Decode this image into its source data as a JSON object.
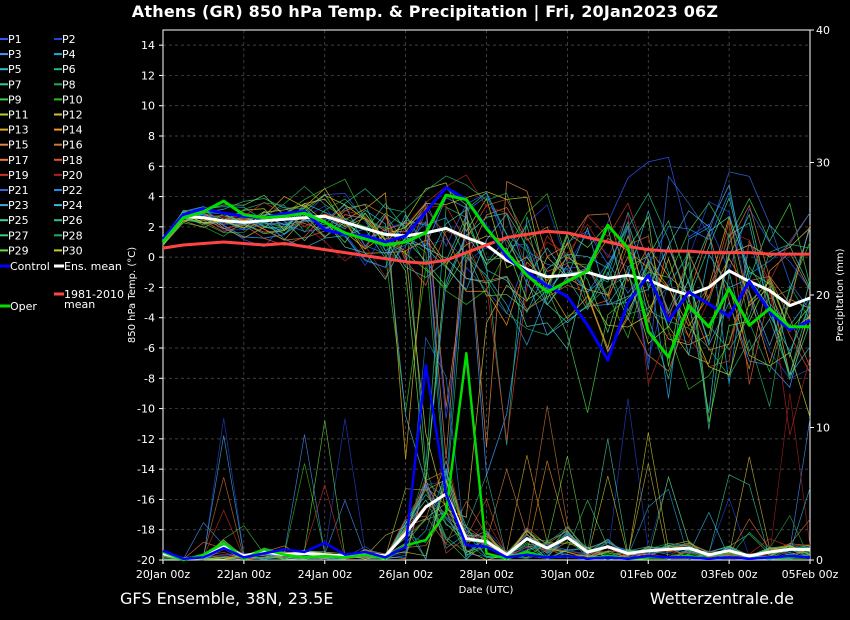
{
  "title": "Athens  (GR)  850 hPa Temp. & Precipitation | Fri, 20Jan2023 06Z",
  "footer": {
    "left": "GFS Ensemble, 38N, 23.5E",
    "right": "Wetterzentrale.de"
  },
  "chart_data": {
    "type": "line",
    "xlabel": "Date (UTC)",
    "ylabel": "850 hPa Temp. (°C)",
    "y2label": "Precipitation (mm)",
    "ylim": [
      -20,
      15
    ],
    "y2lim": [
      0,
      40
    ],
    "xlim_days": [
      0,
      16
    ],
    "x_ticks": [
      {
        "day": 0,
        "label": "20Jan 00z"
      },
      {
        "day": 2,
        "label": "22Jan 00z"
      },
      {
        "day": 4,
        "label": "24Jan 00z"
      },
      {
        "day": 6,
        "label": "26Jan 00z"
      },
      {
        "day": 8,
        "label": "28Jan 00z"
      },
      {
        "day": 10,
        "label": "30Jan 00z"
      },
      {
        "day": 12,
        "label": "01Feb 00z"
      },
      {
        "day": 14,
        "label": "03Feb 00z"
      },
      {
        "day": 16,
        "label": "05Feb 00z"
      }
    ],
    "y_ticks": [
      14,
      12,
      10,
      8,
      6,
      4,
      2,
      0,
      -2,
      -4,
      -6,
      -8,
      -10,
      -12,
      -14,
      -16,
      -18,
      -20
    ],
    "y2_ticks": [
      0,
      10,
      20,
      30,
      40
    ],
    "grid": true,
    "legend_position": "left",
    "legend": [
      {
        "label": "P1",
        "color": "#3355ff"
      },
      {
        "label": "P2",
        "color": "#2244dd"
      },
      {
        "label": "P3",
        "color": "#4499ff"
      },
      {
        "label": "P4",
        "color": "#22aadd"
      },
      {
        "label": "P5",
        "color": "#33bbcc"
      },
      {
        "label": "P6",
        "color": "#22bb88"
      },
      {
        "label": "P7",
        "color": "#33cc99"
      },
      {
        "label": "P8",
        "color": "#22aa55"
      },
      {
        "label": "P9",
        "color": "#44cc44"
      },
      {
        "label": "P10",
        "color": "#33bb22"
      },
      {
        "label": "P11",
        "color": "#bbcc33"
      },
      {
        "label": "P12",
        "color": "#ccbb44"
      },
      {
        "label": "P13",
        "color": "#ddaa22"
      },
      {
        "label": "P14",
        "color": "#ee9922"
      },
      {
        "label": "P15",
        "color": "#dd8844"
      },
      {
        "label": "P16",
        "color": "#cc7733"
      },
      {
        "label": "P17",
        "color": "#ee7744"
      },
      {
        "label": "P18",
        "color": "#dd5533"
      },
      {
        "label": "P19",
        "color": "#cc3322"
      },
      {
        "label": "P20",
        "color": "#aa2222"
      },
      {
        "label": "P21",
        "color": "#3366dd"
      },
      {
        "label": "P22",
        "color": "#2288ee"
      },
      {
        "label": "P23",
        "color": "#44aadd"
      },
      {
        "label": "P24",
        "color": "#33bbdd"
      },
      {
        "label": "P25",
        "color": "#44ccaa"
      },
      {
        "label": "P26",
        "color": "#33bb99"
      },
      {
        "label": "P27",
        "color": "#44cc77"
      },
      {
        "label": "P28",
        "color": "#22aa66"
      },
      {
        "label": "P29",
        "color": "#66dd44"
      },
      {
        "label": "P30",
        "color": "#cccc22"
      },
      {
        "label": "Control",
        "color": "#0000ff"
      },
      {
        "label": "Ens. mean",
        "color": "#ffffff"
      },
      {
        "label": "1981-2010 mean",
        "color": "#ff4444"
      },
      {
        "label": "Oper",
        "color": "#00dd00"
      }
    ],
    "series": [
      {
        "name": "Ens. mean",
        "color": "#ffffff",
        "x": [
          0,
          0.5,
          1,
          1.5,
          2,
          2.5,
          3,
          3.5,
          4,
          4.5,
          5,
          5.5,
          6,
          6.5,
          7,
          7.5,
          8,
          8.5,
          9,
          9.5,
          10,
          10.5,
          11,
          11.5,
          12,
          12.5,
          13,
          13.5,
          14,
          14.5,
          15,
          15.5,
          16
        ],
        "values": [
          1.0,
          2.7,
          2.6,
          2.4,
          2.3,
          2.4,
          2.5,
          2.6,
          2.7,
          2.3,
          1.9,
          1.5,
          1.4,
          1.6,
          1.9,
          1.3,
          0.8,
          -0.2,
          -0.8,
          -1.3,
          -1.2,
          -1.0,
          -1.4,
          -1.2,
          -1.5,
          -2.1,
          -2.5,
          -2.0,
          -0.9,
          -1.6,
          -2.2,
          -3.2,
          -2.7
        ]
      },
      {
        "name": "1981-2010 mean",
        "color": "#ff4444",
        "x": [
          0,
          0.5,
          1,
          1.5,
          2,
          2.5,
          3,
          3.5,
          4,
          4.5,
          5,
          5.5,
          6,
          6.5,
          7,
          7.5,
          8,
          8.5,
          9,
          9.5,
          10,
          10.5,
          11,
          11.5,
          12,
          12.5,
          13,
          13.5,
          14,
          14.5,
          15,
          15.5,
          16
        ],
        "values": [
          0.6,
          0.8,
          0.9,
          1.0,
          0.9,
          0.8,
          0.9,
          0.7,
          0.5,
          0.3,
          0.1,
          -0.1,
          -0.3,
          -0.4,
          -0.2,
          0.3,
          0.8,
          1.3,
          1.5,
          1.7,
          1.6,
          1.3,
          1.0,
          0.7,
          0.5,
          0.4,
          0.4,
          0.3,
          0.3,
          0.3,
          0.2,
          0.2,
          0.2
        ]
      },
      {
        "name": "Control",
        "color": "#0000ff",
        "x": [
          0,
          0.5,
          1,
          1.5,
          2,
          2.5,
          3,
          3.5,
          4,
          4.5,
          5,
          5.5,
          6,
          6.5,
          7,
          7.5,
          8,
          8.5,
          9,
          9.5,
          10,
          10.5,
          11,
          11.5,
          12,
          12.5,
          13,
          13.5,
          14,
          14.5,
          15,
          15.5,
          16
        ],
        "values": [
          1.2,
          2.8,
          3.2,
          2.9,
          2.7,
          2.6,
          2.9,
          3.0,
          1.8,
          1.5,
          1.4,
          1.0,
          1.4,
          3.0,
          4.6,
          3.8,
          2.0,
          0.0,
          -1.0,
          -1.9,
          -2.6,
          -4.5,
          -6.8,
          -3.0,
          -1.2,
          -4.2,
          -2.3,
          -3.1,
          -3.9,
          -1.6,
          -3.6,
          -4.8,
          -4.2
        ]
      },
      {
        "name": "Oper",
        "color": "#00dd00",
        "x": [
          0,
          0.5,
          1,
          1.5,
          2,
          2.5,
          3,
          3.5,
          4,
          4.5,
          5,
          5.5,
          6,
          6.5,
          7,
          7.5,
          8,
          8.5,
          9,
          9.5,
          10,
          10.5,
          11,
          11.5,
          12,
          12.5,
          13,
          13.5,
          14,
          14.5,
          15,
          15.5,
          16
        ],
        "values": [
          1.0,
          2.6,
          3.0,
          3.7,
          2.8,
          2.6,
          2.7,
          2.9,
          2.3,
          1.6,
          1.2,
          0.8,
          1.0,
          1.6,
          4.1,
          3.8,
          1.9,
          0.3,
          -1.2,
          -2.3,
          -1.6,
          -0.9,
          2.1,
          0.6,
          -4.9,
          -6.6,
          -3.2,
          -4.6,
          -2.1,
          -4.5,
          -3.4,
          -4.6,
          -4.6
        ]
      },
      {
        "name": "Precip mean",
        "axis": "right",
        "color": "#ffffff",
        "x": [
          0,
          0.5,
          1,
          1.5,
          2,
          2.5,
          3,
          3.5,
          4,
          4.5,
          5,
          5.5,
          6,
          6.5,
          7,
          7.5,
          8,
          8.5,
          9,
          9.5,
          10,
          10.5,
          11,
          11.5,
          12,
          12.5,
          13,
          13.5,
          14,
          14.5,
          15,
          15.5,
          16
        ],
        "values": [
          0.5,
          0.1,
          0.2,
          1.0,
          0.3,
          0.6,
          0.4,
          0.5,
          0.4,
          0.3,
          0.5,
          0.3,
          2.0,
          4.0,
          5.0,
          1.6,
          1.4,
          0.4,
          1.6,
          0.9,
          1.7,
          0.6,
          1.0,
          0.5,
          0.7,
          0.8,
          0.9,
          0.4,
          0.7,
          0.3,
          0.6,
          0.8,
          0.8
        ]
      },
      {
        "name": "Precip Oper",
        "axis": "right",
        "color": "#00dd00",
        "x": [
          0,
          0.5,
          1,
          1.5,
          2,
          2.5,
          3,
          3.5,
          4,
          4.5,
          5,
          5.5,
          6,
          6.5,
          7,
          7.5,
          8,
          8.5,
          9,
          9.5,
          10,
          10.5,
          11,
          11.5,
          12,
          12.5,
          13,
          13.5,
          14,
          14.5,
          15,
          15.5,
          16
        ],
        "values": [
          0.6,
          0,
          0.4,
          1.3,
          0.1,
          0.8,
          0.4,
          0.2,
          0.3,
          0.2,
          0.4,
          0.1,
          1.1,
          1.5,
          3.6,
          15.6,
          0.5,
          0.1,
          0.6,
          0.2,
          0.3,
          0.1,
          0.3,
          0.1,
          0.2,
          0.2,
          0.3,
          0.1,
          0.2,
          0.1,
          0.2,
          0.2,
          0.2
        ]
      },
      {
        "name": "Precip Control",
        "axis": "right",
        "color": "#0000ff",
        "x": [
          0,
          0.5,
          1,
          1.5,
          2,
          2.5,
          3,
          3.5,
          4,
          4.5,
          5,
          5.5,
          6,
          6.5,
          7,
          7.5,
          8,
          8.5,
          9,
          9.5,
          10,
          10.5,
          11,
          11.5,
          12,
          12.5,
          13,
          13.5,
          14,
          14.5,
          15,
          15.5,
          16
        ],
        "values": [
          0.7,
          0.1,
          0.2,
          0.9,
          0.2,
          0.5,
          0.8,
          0.6,
          1.3,
          0.4,
          0.6,
          0.2,
          1.0,
          14.7,
          5.0,
          1.1,
          1.0,
          0.2,
          0.4,
          0.2,
          0.3,
          0.1,
          0.2,
          0.1,
          0.3,
          0.2,
          0.2,
          0.1,
          0.2,
          0.1,
          0.2,
          0.3,
          0.2
        ]
      }
    ]
  }
}
